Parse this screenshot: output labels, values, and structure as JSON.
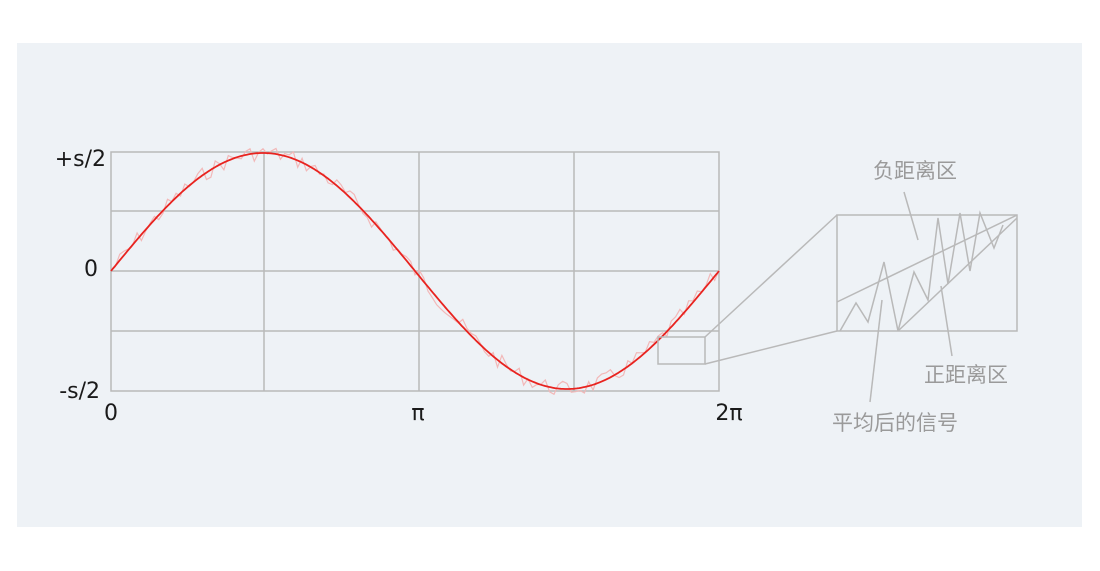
{
  "y_axis": {
    "top": "+s/2",
    "middle": "0",
    "bottom": "-s/2"
  },
  "x_axis": {
    "start": "0",
    "middle": "π",
    "end": "2π"
  },
  "annotations": {
    "negative_zone": "负距离区",
    "positive_zone": "正距离区",
    "averaged_signal": "平均后的信号"
  },
  "colors": {
    "signal": "#e8231f",
    "noisy_signal": "#f2b8b8",
    "grid": "#b9b9b9",
    "background": "#eef2f6"
  }
}
